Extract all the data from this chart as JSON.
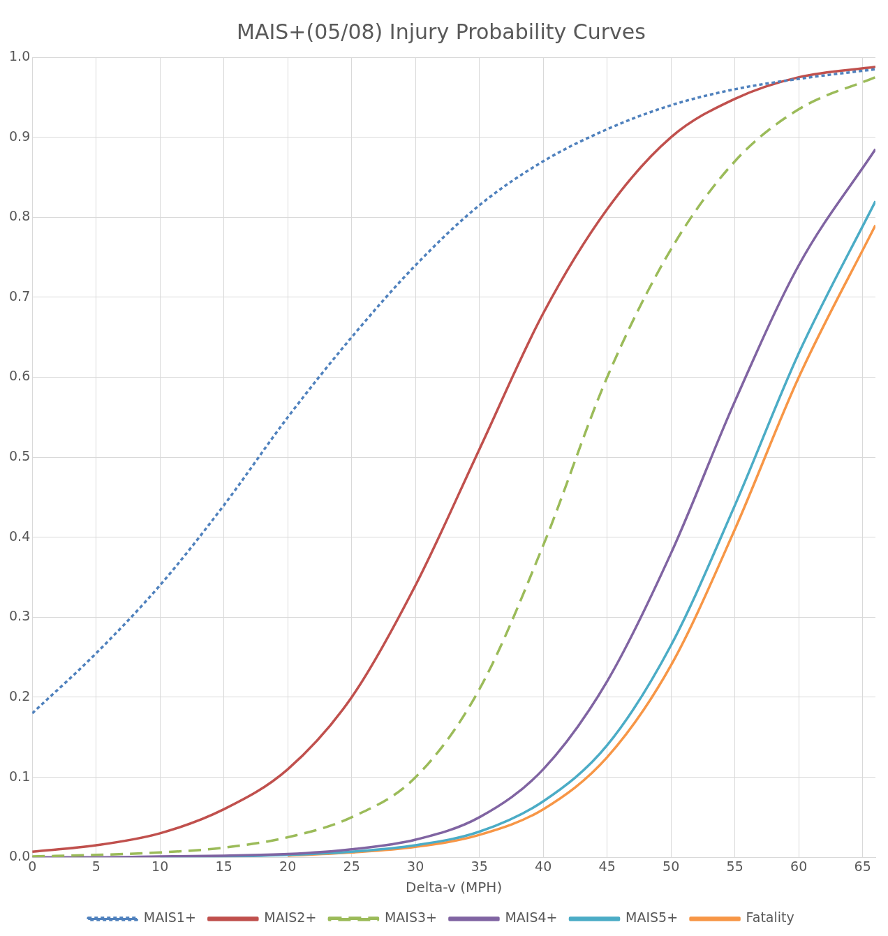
{
  "chart_data": {
    "type": "line",
    "title": "MAIS+(05/08) Injury Probability Curves",
    "xlabel": "Delta-v (MPH)",
    "xlim": [
      0,
      66
    ],
    "xticks": [
      0,
      5,
      10,
      15,
      20,
      25,
      30,
      35,
      40,
      45,
      50,
      55,
      60,
      65
    ],
    "ylim": [
      0,
      1
    ],
    "yticks": [
      {
        "value": 0,
        "label": "0.0"
      },
      {
        "value": 0.1,
        "label": "0.1"
      },
      {
        "value": 0.2,
        "label": "0.2"
      },
      {
        "value": 0.3,
        "label": "0.3"
      },
      {
        "value": 0.4,
        "label": "0.4"
      },
      {
        "value": 0.5,
        "label": "0.5"
      },
      {
        "value": 0.6,
        "label": "0.6"
      },
      {
        "value": 0.7,
        "label": "0.7"
      },
      {
        "value": 0.8,
        "label": "0.8"
      },
      {
        "value": 0.9,
        "label": "0.9"
      },
      {
        "value": 1,
        "label": "1.0"
      }
    ],
    "grid": true,
    "legend": "bottom",
    "marker": "none",
    "x": [
      0,
      5,
      10,
      15,
      20,
      25,
      30,
      35,
      40,
      45,
      50,
      55,
      60,
      66
    ],
    "series": [
      {
        "name": "MAIS1+",
        "color": "#4f81bd",
        "line_style": "dotted",
        "values": [
          0.18,
          0.255,
          0.34,
          0.44,
          0.55,
          0.65,
          0.74,
          0.815,
          0.87,
          0.91,
          0.94,
          0.96,
          0.973,
          0.985
        ]
      },
      {
        "name": "MAIS2+",
        "color": "#c0504d",
        "line_style": "solid",
        "values": [
          0.007,
          0.015,
          0.03,
          0.06,
          0.11,
          0.2,
          0.34,
          0.51,
          0.68,
          0.81,
          0.9,
          0.948,
          0.975,
          0.988
        ]
      },
      {
        "name": "MAIS3+",
        "color": "#9bbb59",
        "line_style": "dashed",
        "values": [
          0.001,
          0.003,
          0.006,
          0.012,
          0.025,
          0.05,
          0.1,
          0.21,
          0.39,
          0.6,
          0.76,
          0.87,
          0.935,
          0.975
        ]
      },
      {
        "name": "MAIS4+",
        "color": "#8064a2",
        "line_style": "solid",
        "values": [
          0,
          0,
          0.001,
          0.002,
          0.004,
          0.01,
          0.022,
          0.05,
          0.11,
          0.22,
          0.38,
          0.57,
          0.74,
          0.885
        ]
      },
      {
        "name": "MAIS5+",
        "color": "#4bacc6",
        "line_style": "solid",
        "values": [
          null,
          null,
          0,
          0.001,
          0.003,
          0.007,
          0.015,
          0.032,
          0.07,
          0.14,
          0.265,
          0.44,
          0.63,
          0.82
        ]
      },
      {
        "name": "Fatality",
        "color": "#f79646",
        "line_style": "solid",
        "values": [
          null,
          null,
          null,
          null,
          0.002,
          0.006,
          0.013,
          0.028,
          0.06,
          0.125,
          0.24,
          0.41,
          0.6,
          0.79
        ]
      }
    ]
  }
}
